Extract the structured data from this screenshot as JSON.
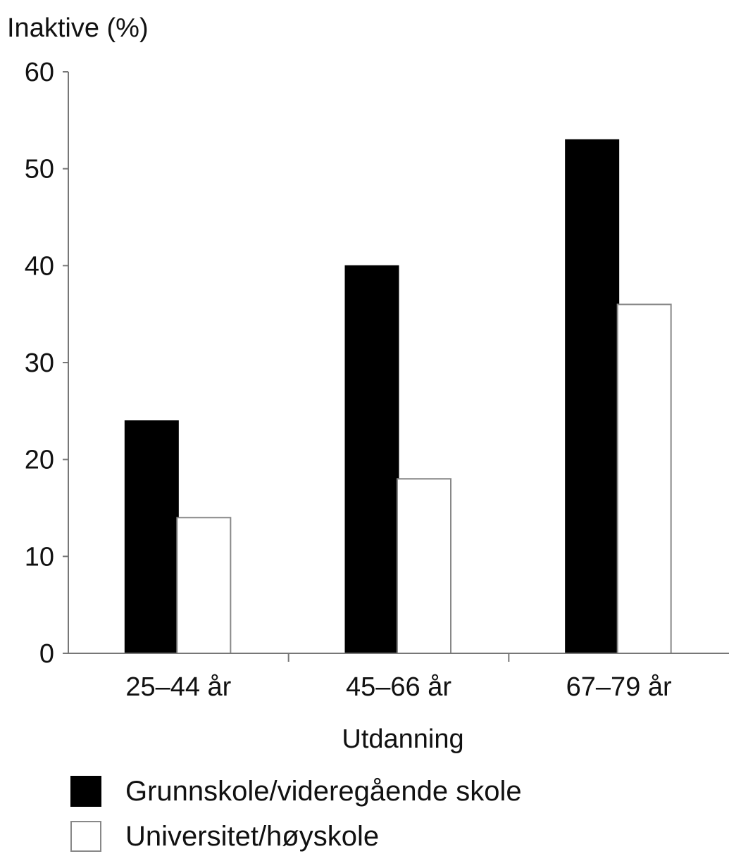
{
  "chart_data": {
    "type": "bar",
    "ylabel": "Inaktive (%)",
    "xlabel": "Utdanning",
    "ylim": [
      0,
      60
    ],
    "yticks": [
      0,
      10,
      20,
      30,
      40,
      50,
      60
    ],
    "categories": [
      "25–44 år",
      "45–66 år",
      "67–79 år"
    ],
    "series": [
      {
        "name": "Grunnskole/videregående skole",
        "color": "#000000",
        "values": [
          24,
          40,
          53
        ]
      },
      {
        "name": "Universitet/høyskole",
        "color": "#ffffff",
        "values": [
          14,
          18,
          36
        ]
      }
    ],
    "legend_position": "bottom-left",
    "grid": false
  }
}
